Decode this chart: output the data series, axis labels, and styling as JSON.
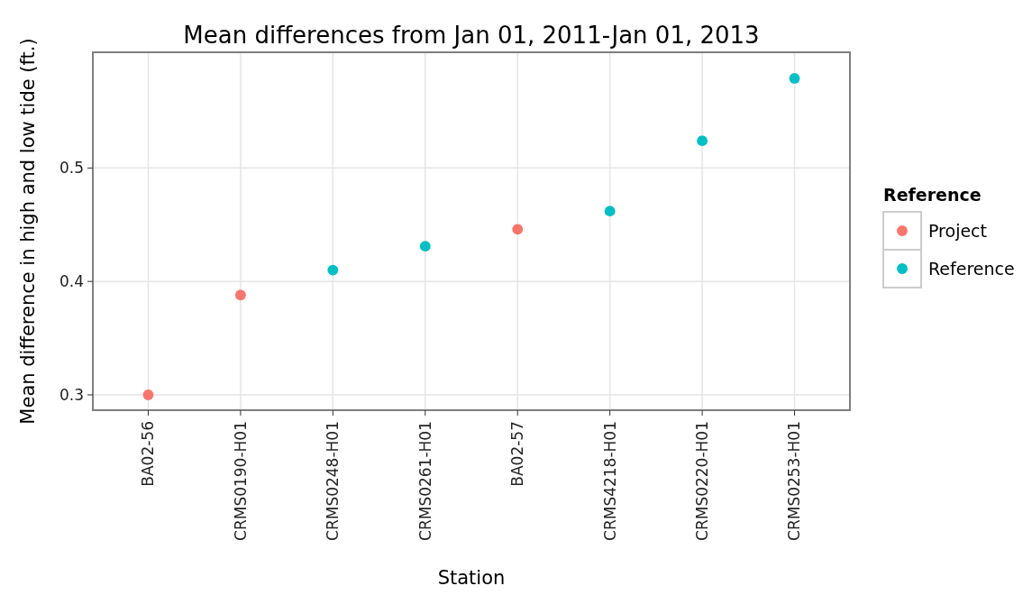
{
  "chart_data": {
    "type": "scatter",
    "title": "Mean differences from Jan 01, 2011-Jan 01, 2013",
    "xlabel": "Station",
    "ylabel": "Mean difference in high and low tide (ft.)",
    "legend_title": "Reference",
    "categories": [
      "BA02-56",
      "CRMS0190-H01",
      "CRMS0248-H01",
      "CRMS0261-H01",
      "BA02-57",
      "CRMS4218-H01",
      "CRMS0220-H01",
      "CRMS0253-H01"
    ],
    "series": [
      {
        "name": "Project",
        "color": "#f8766d",
        "x": [
          "BA02-56",
          "CRMS0190-H01",
          "BA02-57"
        ],
        "values": [
          0.3,
          0.388,
          0.446
        ]
      },
      {
        "name": "Reference",
        "color": "#00bfc4",
        "x": [
          "CRMS0248-H01",
          "CRMS0261-H01",
          "CRMS4218-H01",
          "CRMS0220-H01",
          "CRMS0253-H01"
        ],
        "values": [
          0.41,
          0.431,
          0.462,
          0.524,
          0.579
        ]
      }
    ],
    "ylim": [
      0.2865,
      0.602
    ],
    "yticks": [
      0.3,
      0.4,
      0.5
    ],
    "grid": true,
    "legend": "right",
    "marker": "circle"
  }
}
